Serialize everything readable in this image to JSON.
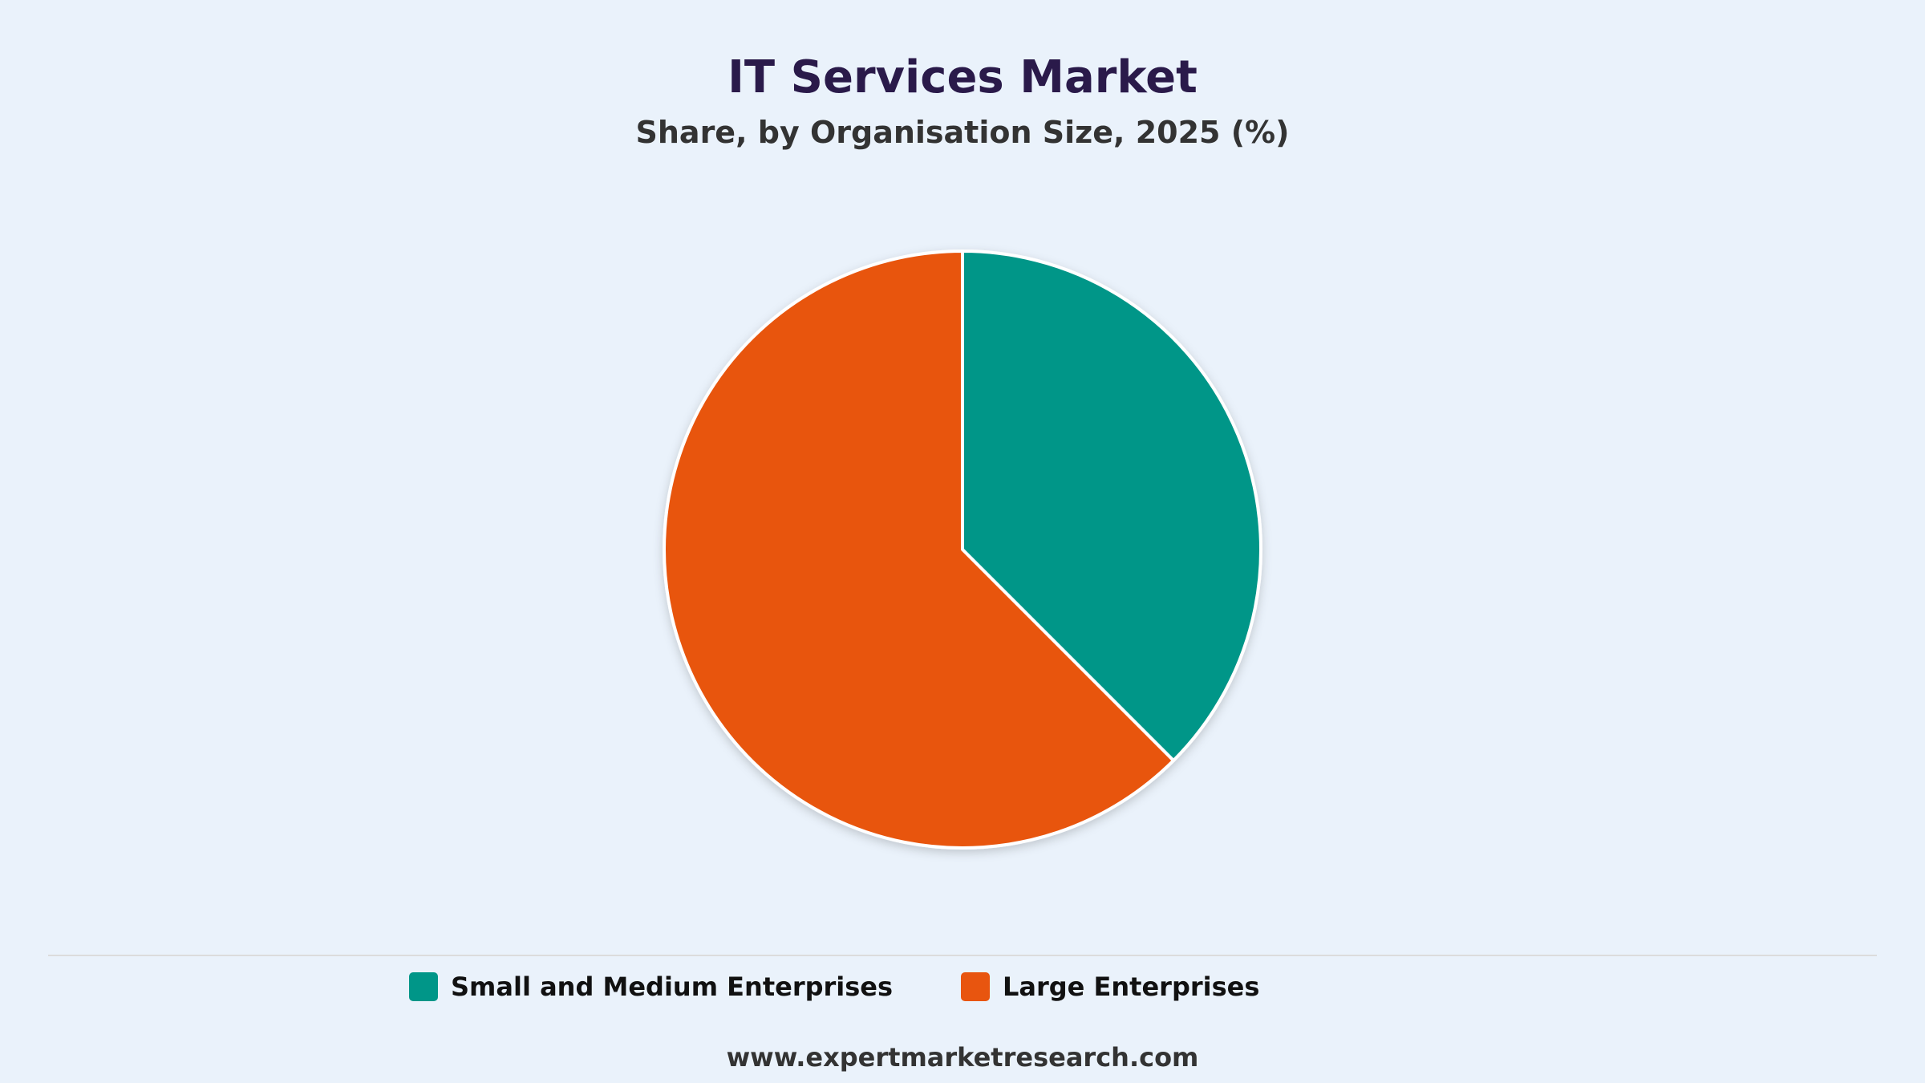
{
  "chart_data": {
    "type": "pie",
    "title": "IT Services Market",
    "subtitle": "Share, by Organisation Size, 2025 (%)",
    "categories": [
      "Small and Medium Enterprises",
      "Large Enterprises"
    ],
    "values": [
      37.5,
      62.5
    ],
    "colors": [
      "#009688",
      "#e8550f"
    ],
    "legend_position": "bottom",
    "source": "www.expertmarketresearch.com"
  }
}
